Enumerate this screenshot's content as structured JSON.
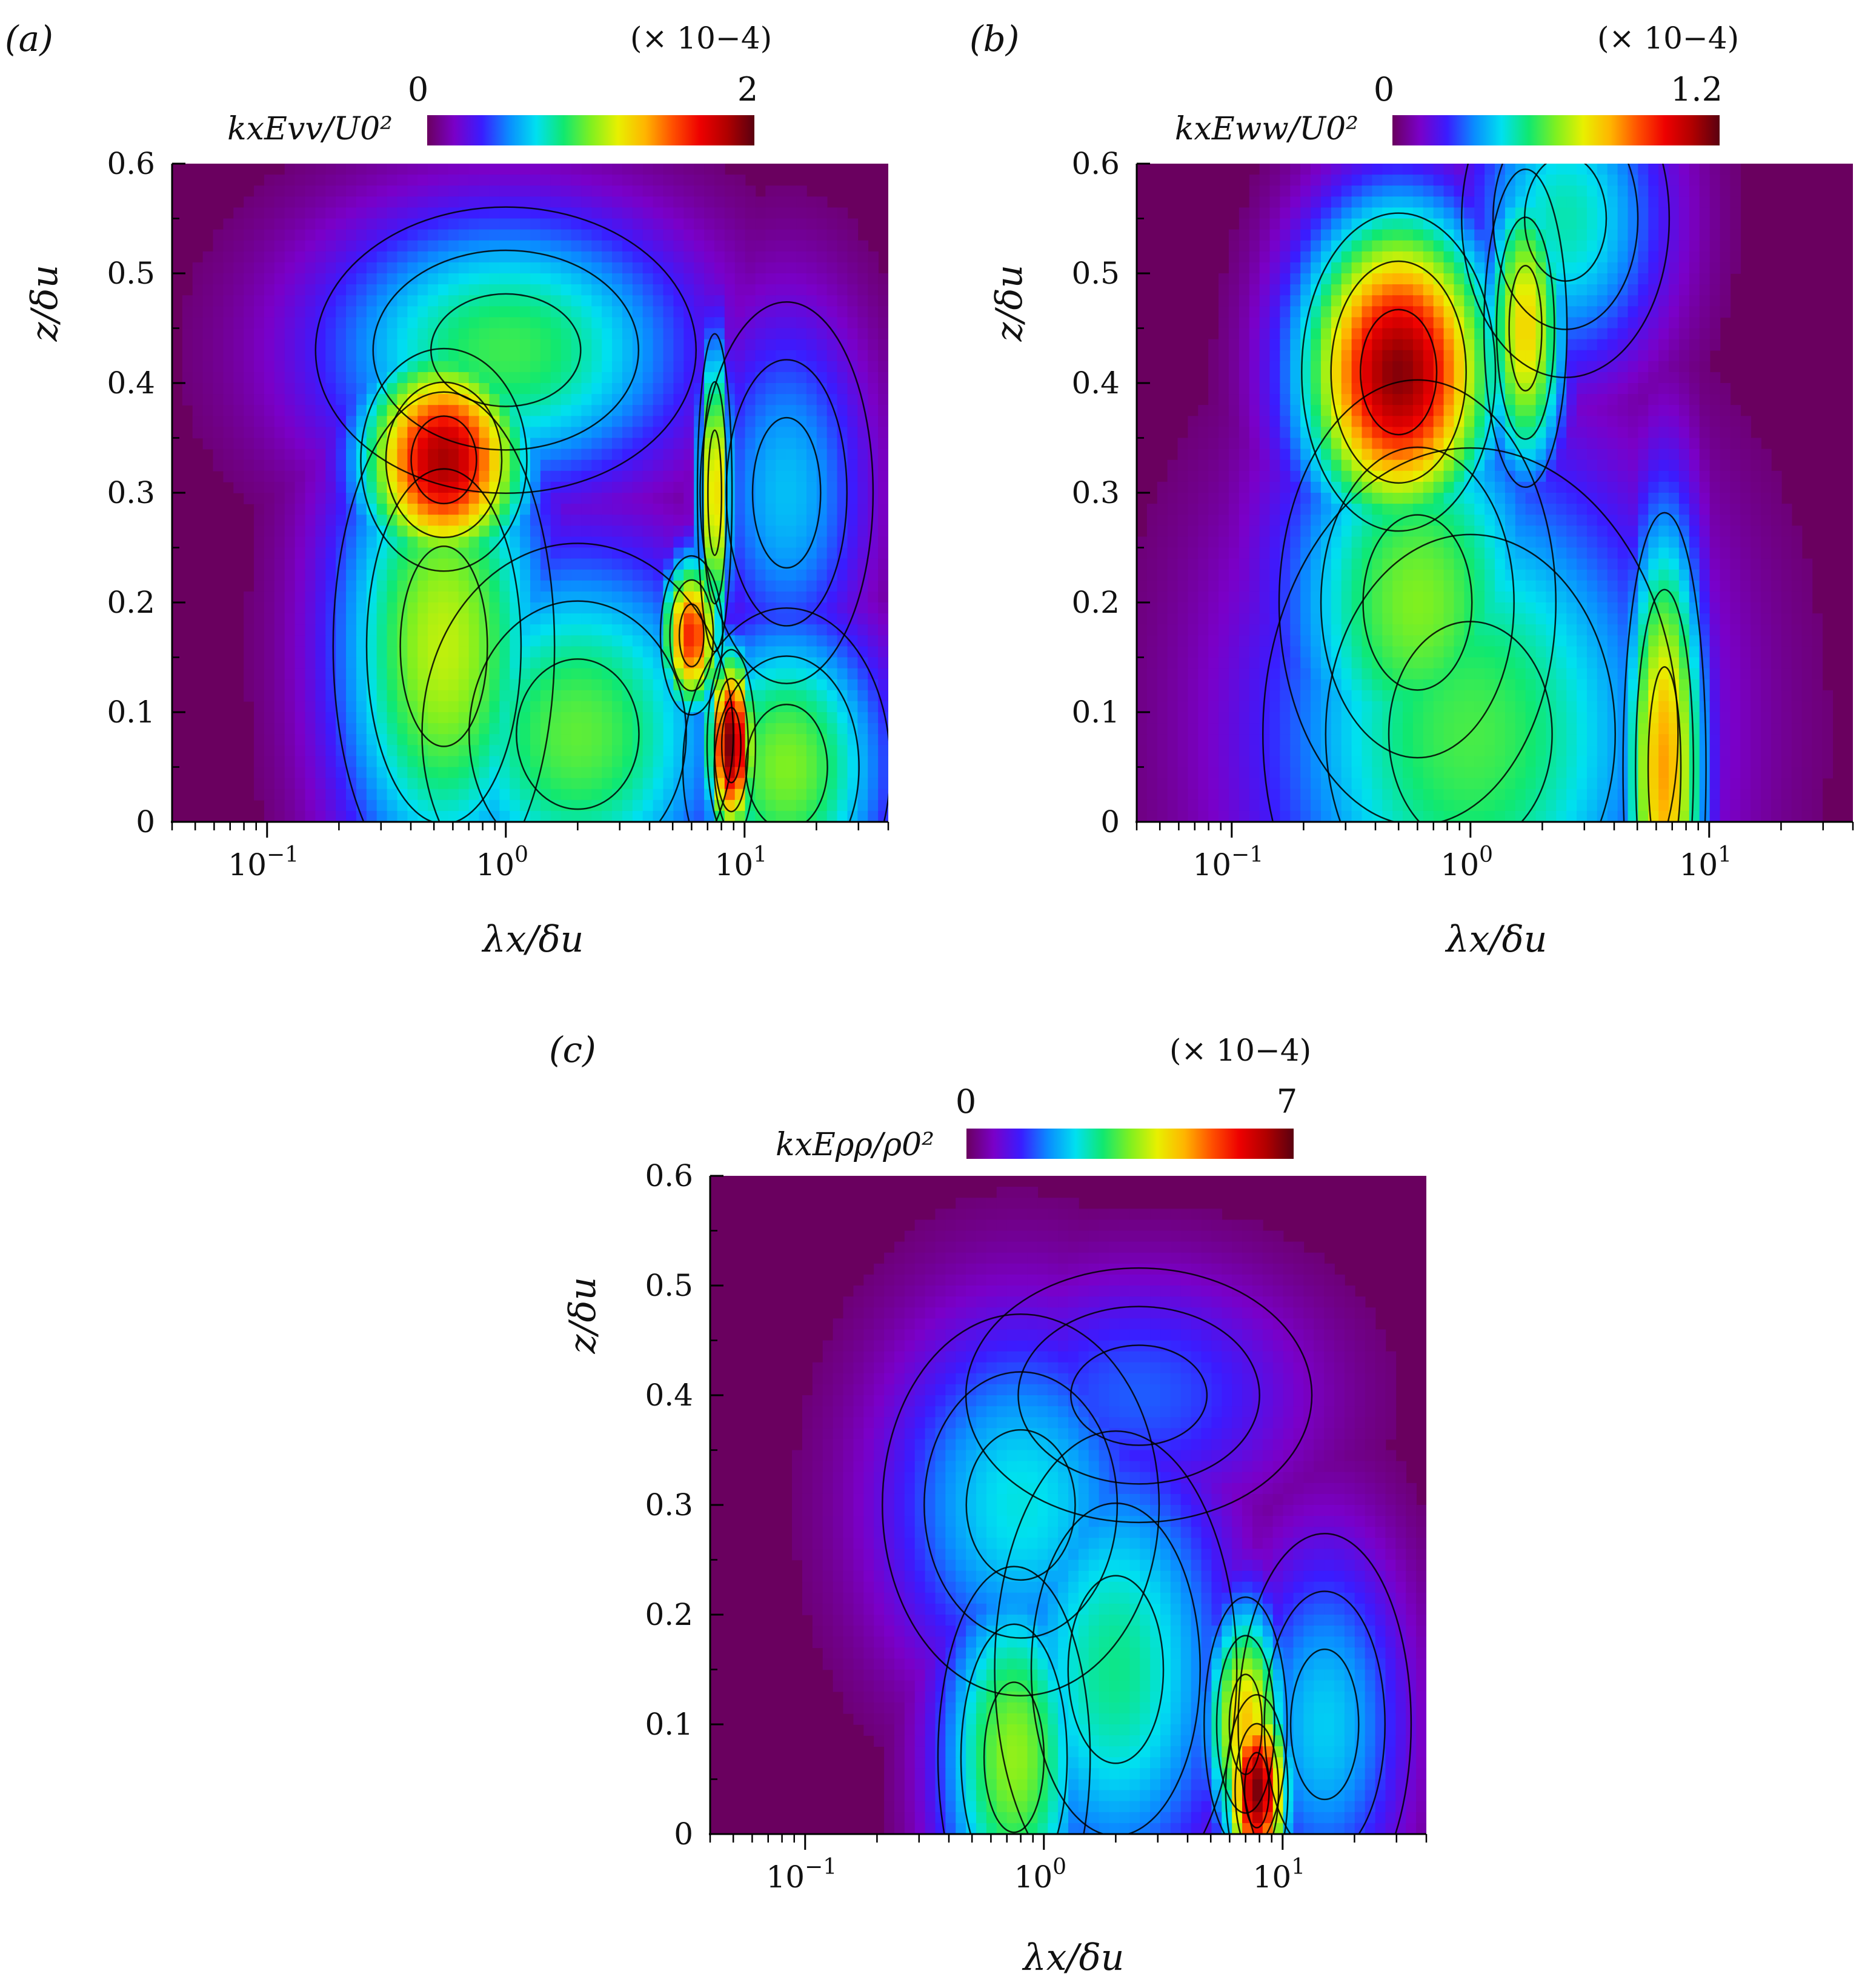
{
  "colormap": [
    "#6a005f",
    "#7a00c8",
    "#3a1cff",
    "#0a8cff",
    "#00e0f0",
    "#10e870",
    "#7ff020",
    "#e8f000",
    "#ffb400",
    "#ff5000",
    "#ee0000",
    "#b00000",
    "#5a0010"
  ],
  "chart_data": [
    {
      "type": "heatmap",
      "panel_label": "(a)",
      "title": "",
      "xlabel": "λx/δu",
      "ylabel": "z/δu",
      "xscale": "log",
      "xlim": [
        0.04,
        40
      ],
      "ylim": [
        0,
        0.6
      ],
      "xtick_labels": [
        "10−1",
        "100",
        "101"
      ],
      "ytick_labels": [
        "0",
        "0.1",
        "0.2",
        "0.3",
        "0.4",
        "0.5",
        "0.6"
      ],
      "colorbar": {
        "label": "kxEvv/U0²",
        "min_label": "0",
        "max_label": "2",
        "multiplier": "(× 10−4)",
        "min": 0,
        "max": 2
      },
      "peaks": [
        {
          "x": 0.55,
          "z": 0.33,
          "value": 1.85,
          "sx": 0.24,
          "sz": 0.07
        },
        {
          "x": 0.55,
          "z": 0.16,
          "value": 1.1,
          "sx": 0.32,
          "sz": 0.16
        },
        {
          "x": 2.0,
          "z": 0.08,
          "value": 0.95,
          "sx": 0.45,
          "sz": 0.12
        },
        {
          "x": 7.5,
          "z": 0.3,
          "value": 1.3,
          "sx": 0.05,
          "sz": 0.1
        },
        {
          "x": 6.0,
          "z": 0.17,
          "value": 1.6,
          "sx": 0.09,
          "sz": 0.05
        },
        {
          "x": 8.8,
          "z": 0.07,
          "value": 1.95,
          "sx": 0.07,
          "sz": 0.06
        },
        {
          "x": 15,
          "z": 0.05,
          "value": 1.0,
          "sx": 0.3,
          "sz": 0.1
        },
        {
          "x": 15,
          "z": 0.3,
          "value": 0.6,
          "sx": 0.25,
          "sz": 0.12
        },
        {
          "x": 1.0,
          "z": 0.43,
          "value": 0.9,
          "sx": 0.55,
          "sz": 0.09
        }
      ]
    },
    {
      "type": "heatmap",
      "panel_label": "(b)",
      "title": "",
      "xlabel": "λx/δu",
      "ylabel": "z/δu",
      "xscale": "log",
      "xlim": [
        0.04,
        40
      ],
      "ylim": [
        0,
        0.6
      ],
      "xtick_labels": [
        "10−1",
        "100",
        "101"
      ],
      "ytick_labels": [
        "0",
        "0.1",
        "0.2",
        "0.3",
        "0.4",
        "0.5",
        "0.6"
      ],
      "colorbar": {
        "label": "kxEww/U0²",
        "min_label": "0",
        "max_label": "1.2",
        "multiplier": "(× 10−4)",
        "min": 0,
        "max": 1.2
      },
      "peaks": [
        {
          "x": 0.5,
          "z": 0.41,
          "value": 1.15,
          "sx": 0.28,
          "sz": 0.1
        },
        {
          "x": 0.6,
          "z": 0.2,
          "value": 0.6,
          "sx": 0.4,
          "sz": 0.14
        },
        {
          "x": 1.7,
          "z": 0.45,
          "value": 0.75,
          "sx": 0.12,
          "sz": 0.1
        },
        {
          "x": 6.5,
          "z": 0.05,
          "value": 0.82,
          "sx": 0.12,
          "sz": 0.16
        },
        {
          "x": 1.0,
          "z": 0.08,
          "value": 0.55,
          "sx": 0.6,
          "sz": 0.18
        },
        {
          "x": 2.5,
          "z": 0.55,
          "value": 0.45,
          "sx": 0.3,
          "sz": 0.1
        }
      ]
    },
    {
      "type": "heatmap",
      "panel_label": "(c)",
      "title": "",
      "xlabel": "λx/δu",
      "ylabel": "z/δu",
      "xscale": "log",
      "xlim": [
        0.04,
        40
      ],
      "ylim": [
        0,
        0.6
      ],
      "xtick_labels": [
        "10−1",
        "100",
        "101"
      ],
      "ytick_labels": [
        "0",
        "0.1",
        "0.2",
        "0.3",
        "0.4",
        "0.5",
        "0.6"
      ],
      "colorbar": {
        "label": "kxEρρ/ρ0²",
        "min_label": "0",
        "max_label": "7",
        "multiplier": "(× 10−4)",
        "min": 0,
        "max": 7
      },
      "peaks": [
        {
          "x": 7.8,
          "z": 0.04,
          "value": 6.8,
          "sx": 0.09,
          "sz": 0.06
        },
        {
          "x": 7.0,
          "z": 0.1,
          "value": 4.5,
          "sx": 0.12,
          "sz": 0.08
        },
        {
          "x": 0.75,
          "z": 0.07,
          "value": 3.6,
          "sx": 0.22,
          "sz": 0.12
        },
        {
          "x": 2.0,
          "z": 0.15,
          "value": 2.8,
          "sx": 0.35,
          "sz": 0.15
        },
        {
          "x": 0.8,
          "z": 0.3,
          "value": 2.4,
          "sx": 0.4,
          "sz": 0.12
        },
        {
          "x": 15,
          "z": 0.1,
          "value": 2.2,
          "sx": 0.25,
          "sz": 0.12
        },
        {
          "x": 2.5,
          "z": 0.4,
          "value": 1.5,
          "sx": 0.5,
          "sz": 0.08
        }
      ]
    }
  ]
}
